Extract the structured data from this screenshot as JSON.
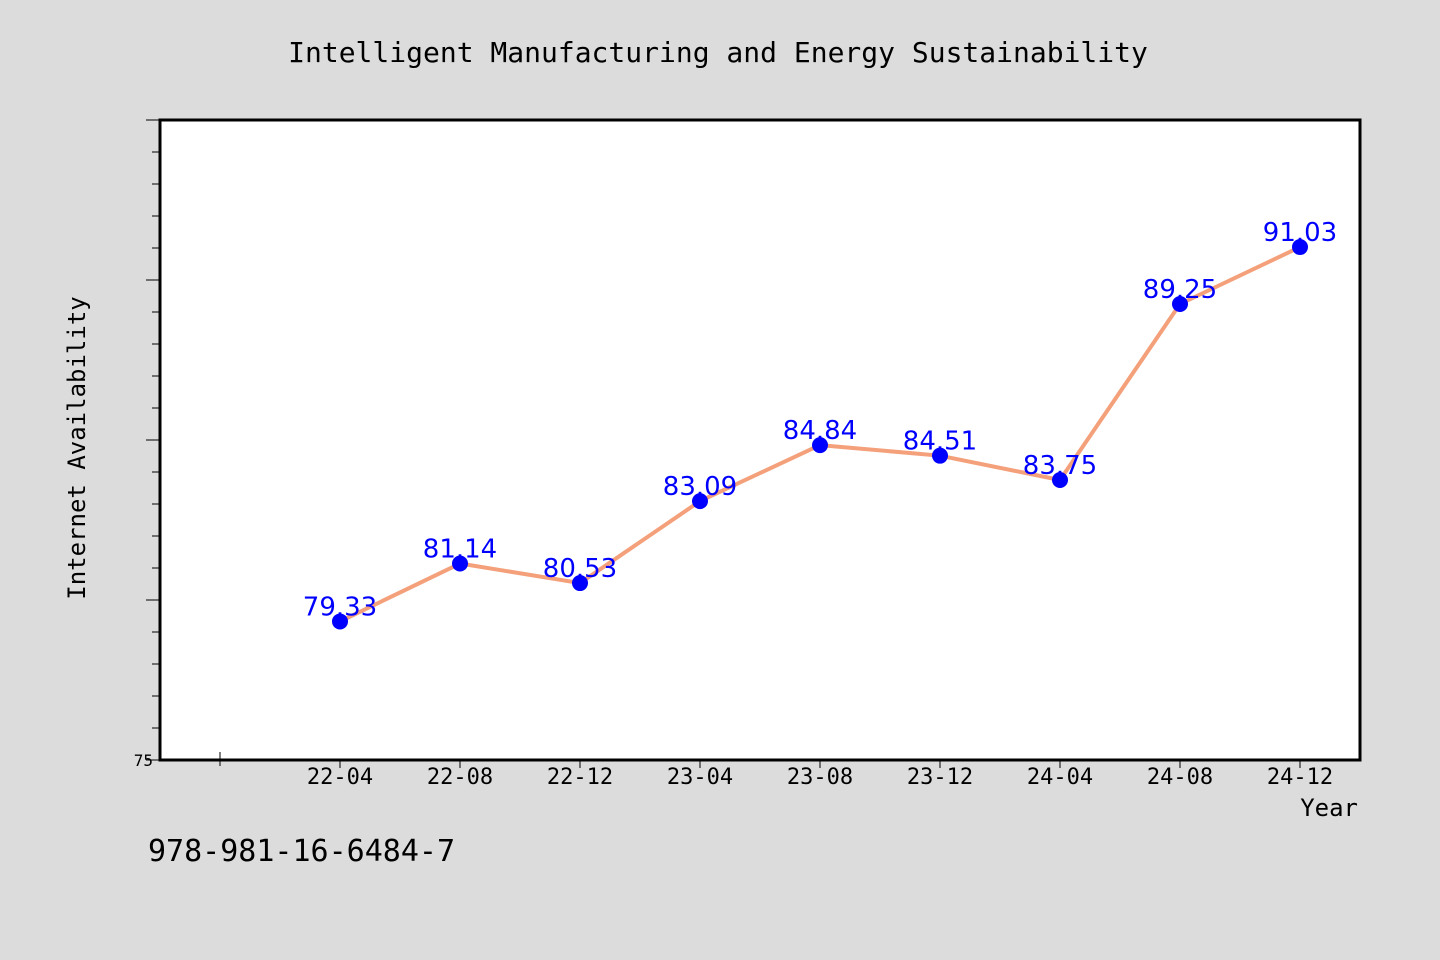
{
  "chart_data": {
    "type": "line",
    "title": "Intelligent Manufacturing and Energy Sustainability",
    "xlabel": "Year",
    "ylabel": "Internet Availability",
    "categories": [
      "22-04",
      "22-08",
      "22-12",
      "23-04",
      "23-08",
      "23-12",
      "24-04",
      "24-08",
      "24-12"
    ],
    "series": [
      {
        "values": [
          79.33,
          81.14,
          80.53,
          83.09,
          84.84,
          84.51,
          83.75,
          89.25,
          91.03
        ],
        "labels": [
          "79.33",
          "81.14",
          "80.53",
          "83.09",
          "84.84",
          "84.51",
          "83.75",
          "89.25",
          "91.03"
        ],
        "line_color": "#f4a07a",
        "marker_color": "#0000ff"
      }
    ],
    "ylim": [
      75,
      95
    ],
    "ytick_labels": [
      "75"
    ],
    "grid": false,
    "legend": "none"
  },
  "footer_text": "978-981-16-6484-7",
  "colors": {
    "background": "#dcdcdc",
    "plot_background": "#ffffff",
    "line": "#f4a07a",
    "marker": "#0000ff",
    "data_label": "#0000ff"
  }
}
